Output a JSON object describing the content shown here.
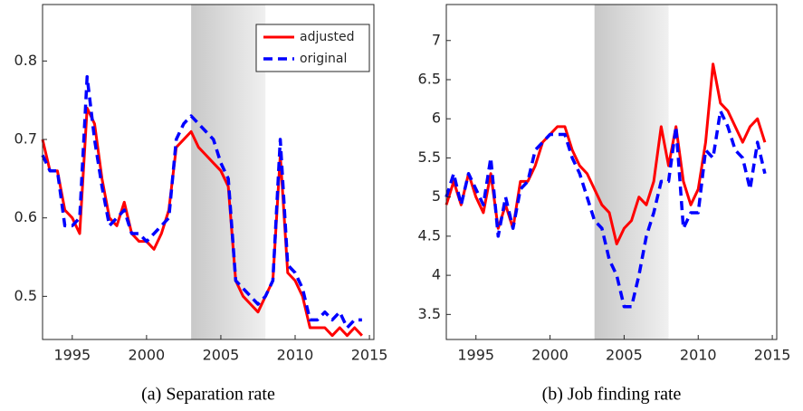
{
  "chart_data": [
    {
      "type": "line",
      "caption": "(a) Separation rate",
      "x": [
        1993,
        1993.5,
        1994,
        1994.5,
        1995,
        1995.5,
        1996,
        1996.5,
        1997,
        1997.5,
        1998,
        1998.5,
        1999,
        1999.5,
        2000,
        2000.5,
        2001,
        2001.5,
        2002,
        2002.5,
        2003,
        2003.5,
        2004,
        2004.5,
        2005,
        2005.5,
        2006,
        2006.5,
        2007,
        2007.5,
        2008,
        2008.5,
        2009,
        2009.5,
        2010,
        2010.5,
        2011,
        2011.5,
        2012,
        2012.5,
        2013,
        2013.5,
        2014,
        2014.5
      ],
      "series": [
        {
          "name": "adjusted",
          "color": "#ff0000",
          "dash": false,
          "values": [
            0.7,
            0.66,
            0.66,
            0.61,
            0.6,
            0.58,
            0.74,
            0.72,
            0.65,
            0.6,
            0.59,
            0.62,
            0.58,
            0.57,
            0.57,
            0.56,
            0.58,
            0.61,
            0.69,
            0.7,
            0.71,
            0.69,
            0.68,
            0.67,
            0.66,
            0.64,
            0.52,
            0.5,
            0.49,
            0.48,
            0.5,
            0.52,
            0.68,
            0.53,
            0.52,
            0.5,
            0.46,
            0.46,
            0.46,
            0.45,
            0.46,
            0.45,
            0.46,
            0.45
          ]
        },
        {
          "name": "original",
          "color": "#0000ff",
          "dash": true,
          "values": [
            0.68,
            0.66,
            0.66,
            0.59,
            0.59,
            0.6,
            0.78,
            0.7,
            0.64,
            0.59,
            0.6,
            0.61,
            0.58,
            0.58,
            0.57,
            0.58,
            0.59,
            0.6,
            0.7,
            0.72,
            0.73,
            0.72,
            0.71,
            0.7,
            0.67,
            0.65,
            0.52,
            0.51,
            0.5,
            0.49,
            0.5,
            0.52,
            0.7,
            0.54,
            0.53,
            0.51,
            0.47,
            0.47,
            0.48,
            0.47,
            0.48,
            0.46,
            0.47,
            0.47
          ]
        }
      ],
      "xlim": [
        1993,
        2015.3
      ],
      "xticks": [
        1995,
        2000,
        2005,
        2010,
        2015
      ],
      "ylim": [
        0.445,
        0.872
      ],
      "yticks": [
        0.5,
        0.6,
        0.7,
        0.8
      ],
      "shaded_range": [
        2003,
        2008
      ],
      "legend": "top-right"
    },
    {
      "type": "line",
      "caption": "(b) Job finding rate",
      "x": [
        1993,
        1993.5,
        1994,
        1994.5,
        1995,
        1995.5,
        1996,
        1996.5,
        1997,
        1997.5,
        1998,
        1998.5,
        1999,
        1999.5,
        2000,
        2000.5,
        2001,
        2001.5,
        2002,
        2002.5,
        2003,
        2003.5,
        2004,
        2004.5,
        2005,
        2005.5,
        2006,
        2006.5,
        2007,
        2007.5,
        2008,
        2008.5,
        2009,
        2009.5,
        2010,
        2010.5,
        2011,
        2011.5,
        2012,
        2012.5,
        2013,
        2013.5,
        2014,
        2014.5
      ],
      "series": [
        {
          "color": "#ff0000",
          "dash": false,
          "values": [
            4.9,
            5.2,
            4.9,
            5.3,
            5.0,
            4.8,
            5.3,
            4.6,
            4.9,
            4.6,
            5.2,
            5.2,
            5.4,
            5.7,
            5.8,
            5.9,
            5.9,
            5.6,
            5.4,
            5.3,
            5.1,
            4.9,
            4.8,
            4.4,
            4.6,
            4.7,
            5.0,
            4.9,
            5.2,
            5.9,
            5.4,
            5.9,
            5.2,
            4.9,
            5.1,
            5.7,
            6.7,
            6.2,
            6.1,
            5.9,
            5.7,
            5.9,
            6.0,
            5.7
          ]
        },
        {
          "color": "#0000ff",
          "dash": true,
          "values": [
            5.0,
            5.3,
            4.9,
            5.3,
            5.1,
            4.9,
            5.5,
            4.5,
            5.0,
            4.6,
            5.1,
            5.2,
            5.6,
            5.7,
            5.8,
            5.8,
            5.8,
            5.5,
            5.3,
            5.0,
            4.7,
            4.6,
            4.2,
            4.0,
            3.6,
            3.6,
            4.0,
            4.5,
            4.8,
            5.2,
            5.2,
            5.9,
            4.6,
            4.8,
            4.8,
            5.6,
            5.5,
            6.1,
            5.9,
            5.6,
            5.5,
            5.1,
            5.7,
            5.3
          ]
        }
      ],
      "xlim": [
        1993,
        2015.3
      ],
      "xticks": [
        1995,
        2000,
        2005,
        2010,
        2015
      ],
      "ylim": [
        3.18,
        7.46
      ],
      "yticks": [
        3.5,
        4,
        4.5,
        5,
        5.5,
        6,
        6.5,
        7
      ],
      "shaded_range": [
        2003,
        2008
      ]
    }
  ]
}
